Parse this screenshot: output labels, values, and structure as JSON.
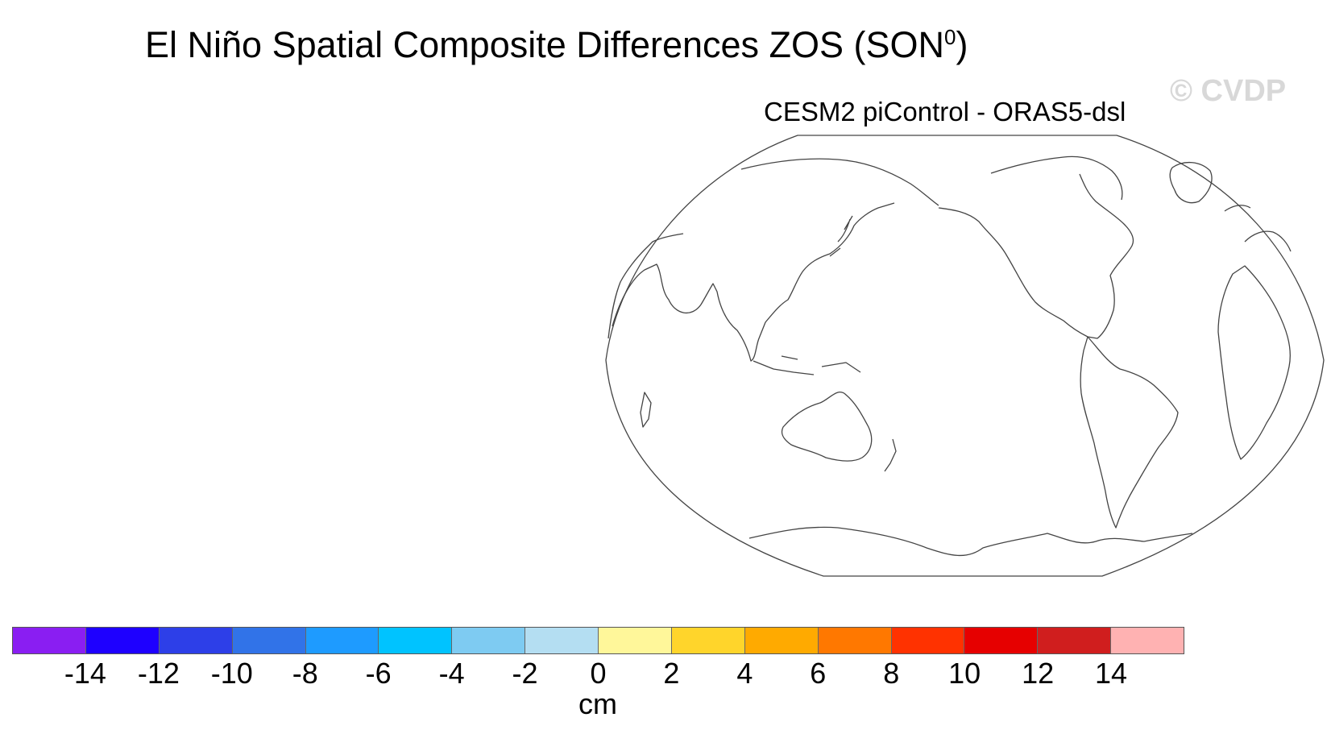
{
  "title": {
    "main": "El Niño Spatial Composite Differences ZOS (SON",
    "superscript": "0",
    "close": ")"
  },
  "watermark": "© CVDP",
  "subtitle": "CESM2 piControl - ORAS5-dsl",
  "map": {
    "projection": "robinson",
    "central_longitude": 180,
    "field_shown": false
  },
  "colorbar": {
    "unit": "cm",
    "tick_labels": [
      "-14",
      "-12",
      "-10",
      "-8",
      "-6",
      "-4",
      "-2",
      "0",
      "2",
      "4",
      "6",
      "8",
      "10",
      "12",
      "14"
    ],
    "colors": [
      "#8a1ef2",
      "#1e00ff",
      "#2d3fe8",
      "#3173e8",
      "#1e9bff",
      "#00c3ff",
      "#7ecbf2",
      "#b4def2",
      "#fff79a",
      "#ffd52b",
      "#ffaa00",
      "#ff7800",
      "#ff3200",
      "#e60000",
      "#d01e1e",
      "#ffb2b2"
    ]
  }
}
